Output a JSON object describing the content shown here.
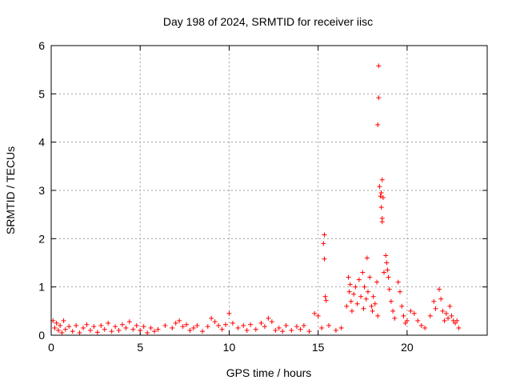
{
  "chart_data": {
    "type": "scatter",
    "title": "Day 198 of 2024, SRMTID for receiver iisc",
    "xlabel": "GPS time / hours",
    "ylabel": "SRMTID / TECUs",
    "xlim": [
      0,
      24.5
    ],
    "ylim": [
      0,
      6
    ],
    "xticks": [
      0,
      5,
      10,
      15,
      20
    ],
    "yticks": [
      0,
      1,
      2,
      3,
      4,
      5,
      6
    ],
    "grid": true,
    "series": [
      {
        "name": "SRMTID",
        "color": "#ff0000",
        "marker": "plus",
        "points": [
          [
            0.1,
            0.3
          ],
          [
            0.2,
            0.15
          ],
          [
            0.3,
            0.25
          ],
          [
            0.4,
            0.1
          ],
          [
            0.5,
            0.2
          ],
          [
            0.6,
            0.05
          ],
          [
            0.7,
            0.3
          ],
          [
            0.8,
            0.12
          ],
          [
            1.0,
            0.18
          ],
          [
            1.2,
            0.08
          ],
          [
            1.4,
            0.2
          ],
          [
            1.6,
            0.05
          ],
          [
            1.8,
            0.15
          ],
          [
            2.0,
            0.22
          ],
          [
            2.2,
            0.1
          ],
          [
            2.4,
            0.18
          ],
          [
            2.6,
            0.06
          ],
          [
            2.8,
            0.2
          ],
          [
            3.0,
            0.12
          ],
          [
            3.2,
            0.25
          ],
          [
            3.4,
            0.08
          ],
          [
            3.6,
            0.18
          ],
          [
            3.8,
            0.1
          ],
          [
            4.0,
            0.22
          ],
          [
            4.2,
            0.15
          ],
          [
            4.4,
            0.28
          ],
          [
            4.6,
            0.12
          ],
          [
            4.8,
            0.2
          ],
          [
            5.0,
            0.1
          ],
          [
            5.2,
            0.18
          ],
          [
            5.4,
            0.05
          ],
          [
            5.6,
            0.15
          ],
          [
            5.8,
            0.08
          ],
          [
            6.0,
            0.12
          ],
          [
            6.4,
            0.2
          ],
          [
            6.8,
            0.15
          ],
          [
            7.0,
            0.25
          ],
          [
            7.2,
            0.3
          ],
          [
            7.4,
            0.18
          ],
          [
            7.6,
            0.22
          ],
          [
            7.8,
            0.1
          ],
          [
            8.0,
            0.15
          ],
          [
            8.2,
            0.2
          ],
          [
            8.5,
            0.08
          ],
          [
            8.8,
            0.18
          ],
          [
            9.0,
            0.35
          ],
          [
            9.2,
            0.28
          ],
          [
            9.4,
            0.2
          ],
          [
            9.6,
            0.12
          ],
          [
            9.8,
            0.22
          ],
          [
            10.0,
            0.45
          ],
          [
            10.2,
            0.25
          ],
          [
            10.5,
            0.15
          ],
          [
            10.8,
            0.2
          ],
          [
            11.0,
            0.1
          ],
          [
            11.2,
            0.22
          ],
          [
            11.5,
            0.12
          ],
          [
            11.8,
            0.25
          ],
          [
            12.0,
            0.18
          ],
          [
            12.2,
            0.35
          ],
          [
            12.4,
            0.28
          ],
          [
            12.6,
            0.1
          ],
          [
            12.8,
            0.15
          ],
          [
            13.0,
            0.08
          ],
          [
            13.2,
            0.2
          ],
          [
            13.5,
            0.1
          ],
          [
            13.8,
            0.18
          ],
          [
            14.0,
            0.12
          ],
          [
            14.2,
            0.2
          ],
          [
            14.5,
            0.08
          ],
          [
            14.8,
            0.45
          ],
          [
            15.0,
            0.4
          ],
          [
            15.2,
            0.15
          ],
          [
            15.35,
            2.08
          ],
          [
            15.3,
            1.9
          ],
          [
            15.35,
            1.58
          ],
          [
            15.4,
            0.8
          ],
          [
            15.45,
            0.72
          ],
          [
            15.6,
            0.2
          ],
          [
            16.0,
            0.1
          ],
          [
            16.3,
            0.15
          ],
          [
            16.6,
            0.6
          ],
          [
            16.7,
            1.2
          ],
          [
            16.75,
            0.9
          ],
          [
            16.8,
            1.05
          ],
          [
            16.85,
            0.7
          ],
          [
            16.9,
            0.5
          ],
          [
            17.0,
            0.85
          ],
          [
            17.1,
            1.0
          ],
          [
            17.2,
            0.65
          ],
          [
            17.3,
            1.15
          ],
          [
            17.4,
            0.8
          ],
          [
            17.5,
            1.3
          ],
          [
            17.55,
            0.55
          ],
          [
            17.6,
            1.0
          ],
          [
            17.7,
            0.75
          ],
          [
            17.75,
            1.6
          ],
          [
            17.8,
            0.9
          ],
          [
            17.9,
            1.2
          ],
          [
            18.0,
            0.6
          ],
          [
            18.05,
            0.5
          ],
          [
            18.1,
            0.8
          ],
          [
            18.2,
            0.65
          ],
          [
            18.3,
            1.1
          ],
          [
            18.35,
            0.4
          ],
          [
            18.4,
            5.58
          ],
          [
            18.4,
            4.92
          ],
          [
            18.35,
            4.36
          ],
          [
            18.45,
            3.08
          ],
          [
            18.6,
            3.22
          ],
          [
            18.55,
            2.95
          ],
          [
            18.5,
            2.88
          ],
          [
            18.65,
            2.85
          ],
          [
            18.55,
            2.65
          ],
          [
            18.6,
            2.42
          ],
          [
            18.6,
            2.35
          ],
          [
            18.7,
            1.3
          ],
          [
            18.8,
            1.65
          ],
          [
            18.85,
            1.5
          ],
          [
            18.9,
            1.35
          ],
          [
            18.95,
            1.2
          ],
          [
            19.0,
            0.95
          ],
          [
            19.1,
            0.7
          ],
          [
            19.2,
            0.5
          ],
          [
            19.3,
            0.35
          ],
          [
            19.5,
            1.1
          ],
          [
            19.6,
            0.9
          ],
          [
            19.7,
            0.6
          ],
          [
            19.8,
            0.4
          ],
          [
            19.9,
            0.25
          ],
          [
            20.0,
            0.3
          ],
          [
            20.2,
            0.5
          ],
          [
            20.4,
            0.45
          ],
          [
            20.6,
            0.3
          ],
          [
            20.8,
            0.2
          ],
          [
            21.0,
            0.15
          ],
          [
            21.3,
            0.4
          ],
          [
            21.5,
            0.7
          ],
          [
            21.6,
            0.55
          ],
          [
            21.8,
            0.95
          ],
          [
            21.9,
            0.75
          ],
          [
            22.0,
            0.5
          ],
          [
            22.1,
            0.3
          ],
          [
            22.2,
            0.45
          ],
          [
            22.3,
            0.35
          ],
          [
            22.4,
            0.6
          ],
          [
            22.5,
            0.4
          ],
          [
            22.6,
            0.3
          ],
          [
            22.7,
            0.25
          ],
          [
            22.8,
            0.3
          ],
          [
            22.9,
            0.15
          ]
        ]
      }
    ]
  }
}
